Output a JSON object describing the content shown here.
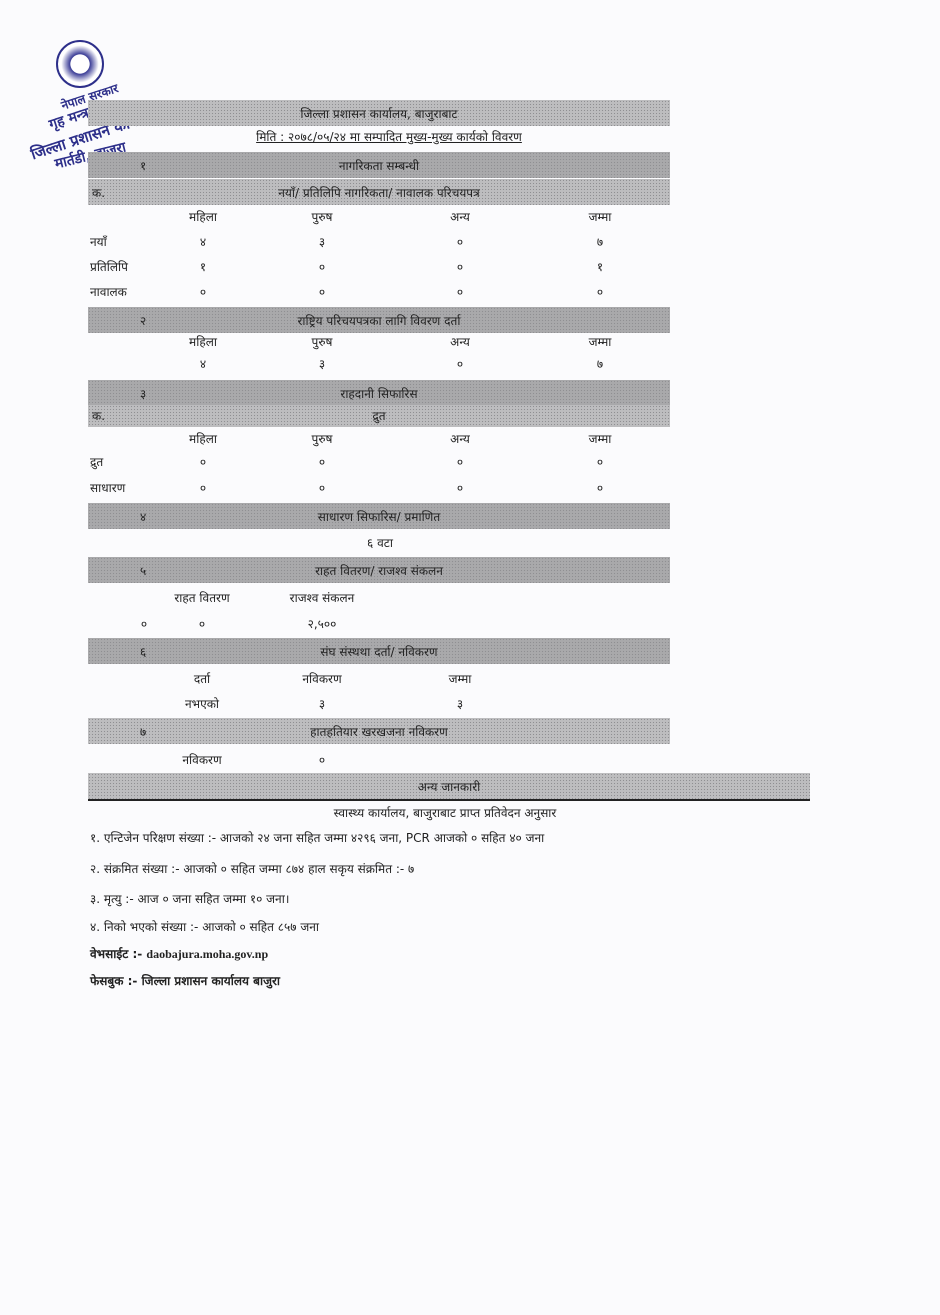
{
  "stamp": {
    "line1": "नेपाल सरकार",
    "line2": "गृह मन्त्रालय",
    "line3": "जिल्ला प्रशासन कार्यालय",
    "line4": "मार्तडी, बाजुरा",
    "color": "#2d2f8a"
  },
  "header": {
    "office": "जिल्ला प्रशासन कार्यालय, बाजुराबाट",
    "subtitle": "मिति : २०७८/०५/२४ मा सम्पादित मुख्य-मुख्य कार्यको विवरण"
  },
  "cols": {
    "female": "महिला",
    "male": "पुरुष",
    "other": "अन्य",
    "total": "जम्मा"
  },
  "s1": {
    "num": "१",
    "title": "नागरिकता सम्बन्धी",
    "sub_label": "क.",
    "sub_title": "नयाँ/ प्रतिलिपि नागरिकता/ नावालक परिचयपत्र",
    "rows": [
      {
        "label": "नयाँ",
        "v": [
          "४",
          "३",
          "०",
          "७"
        ]
      },
      {
        "label": "प्रतिलिपि",
        "v": [
          "१",
          "०",
          "०",
          "१"
        ]
      },
      {
        "label": "नावालक",
        "v": [
          "०",
          "०",
          "०",
          "०"
        ]
      }
    ]
  },
  "s2": {
    "num": "२",
    "title": "राष्ट्रिय परिचयपत्रका लागि विवरण दर्ता",
    "v": [
      "४",
      "३",
      "०",
      "७"
    ]
  },
  "s3": {
    "num": "३",
    "title": "राहदानी सिफारिस",
    "sub_label": "क.",
    "sub_title": "द्रुत",
    "rows": [
      {
        "label": "द्रुत",
        "v": [
          "०",
          "०",
          "०",
          "०"
        ]
      },
      {
        "label": "साधारण",
        "v": [
          "०",
          "०",
          "०",
          "०"
        ]
      }
    ]
  },
  "s4": {
    "num": "४",
    "title": "साधारण सिफारिस/ प्रमाणित",
    "value": "६ वटा"
  },
  "s5": {
    "num": "५",
    "title": "राहत वितरण/ राजश्व संकलन",
    "h1": "राहत वितरण",
    "h2": "राजश्व संकलन",
    "v0": "०",
    "v1": "०",
    "v2": "२,५००"
  },
  "s6": {
    "num": "६",
    "title": "संघ संस्थथा दर्ता/ नविकरण",
    "h1": "दर्ता",
    "h2": "नविकरण",
    "h3": "जम्मा",
    "v1": "नभएको",
    "v2": "३",
    "v3": "३"
  },
  "s7": {
    "num": "७",
    "title": "हातहतियार खरखजना नविकरण",
    "label": "नविकरण",
    "value": "०"
  },
  "other": {
    "title": "अन्य जानकारी",
    "subtitle": "स्वास्थ्य कार्यालय, बाजुराबाट प्राप्त प्रतिवेदन अनुसार",
    "lines": [
      "१. एन्टिजेन परिक्षण संख्या :- आजको २४ जना सहित जम्मा ४२९६ जना, PCR आजको ० सहित ४० जना",
      "२. संक्रमित संख्या :- आजको ० सहित जम्मा ८७४ हाल सकृय संक्रमित :- ७",
      "३. मृत्यु :- आज ० जना सहित जम्मा १० जना।",
      "४. निको भएको संख्या  :-  आजको ० सहित ८५७ जना"
    ],
    "website_label": "वेभसाईट :-",
    "website": "daobajura.moha.gov.np",
    "facebook": "फेसबुक :- जिल्ला प्रशासन कार्यालय बाजुरा"
  }
}
